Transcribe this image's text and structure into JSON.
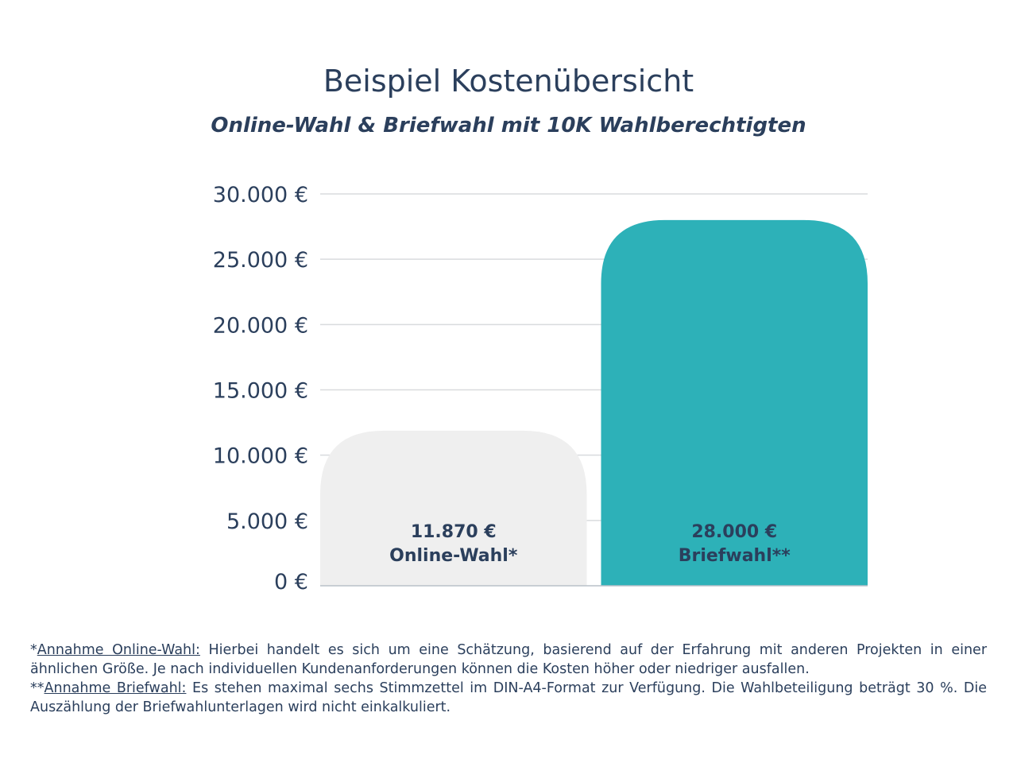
{
  "chart_data": {
    "type": "bar",
    "title": "Beispiel Kostenübersicht",
    "subtitle": "Online-Wahl & Briefwahl mit 10K Wahlberechtigten",
    "categories": [
      "Online-Wahl*",
      "Briefwahl**"
    ],
    "values": [
      11870,
      28000
    ],
    "value_labels": [
      "11.870 €",
      "28.000 €"
    ],
    "bar_colors": [
      "#efefef",
      "#2db1b8"
    ],
    "ylim": [
      0,
      30000
    ],
    "yticks": [
      0,
      5000,
      10000,
      15000,
      20000,
      25000,
      30000
    ],
    "ytick_labels": [
      "0 €",
      "5.000 €",
      "10.000 €",
      "15.000 €",
      "20.000 €",
      "25.000 €",
      "30.000 €"
    ],
    "grid": true,
    "text_color": "#2b3f5c"
  },
  "footnotes": [
    {
      "prefix": "*",
      "heading": "Annahme Online-Wahl:",
      "text": " Hierbei handelt es sich um eine Schätzung, basierend auf der Erfahrung mit anderen Projekten in einer ähnlichen Größe. Je nach individuellen Kundenanforderungen können die Kosten höher oder niedriger ausfallen."
    },
    {
      "prefix": "**",
      "heading": "Annahme Briefwahl:",
      "text": " Es stehen maximal sechs Stimmzettel im DIN-A4-Format zur Verfügung. Die Wahlbeteiligung beträgt 30 %. Die Auszählung der Briefwahlunterlagen wird nicht einkalkuliert."
    }
  ]
}
